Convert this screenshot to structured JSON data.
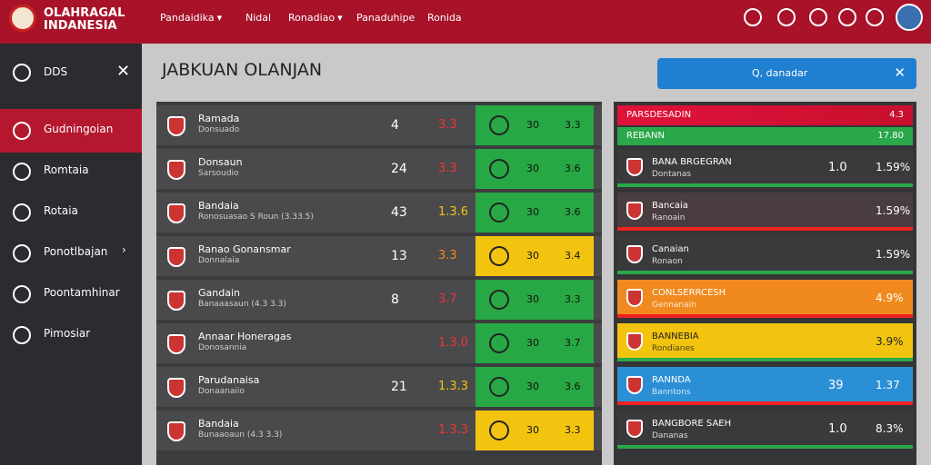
{
  "header": {
    "brand": [
      "OLAHRAGAL",
      "INDANESIA"
    ],
    "nav": [
      {
        "label": "Pandaidika",
        "menu": true
      },
      {
        "label": "Nidal",
        "menu": false
      },
      {
        "label": "Ronadiao",
        "menu": true
      },
      {
        "label": "Panaduhipe",
        "menu": false
      },
      {
        "label": "Ronida",
        "menu": false
      }
    ]
  },
  "sidebar": {
    "title": "DDS",
    "items": [
      {
        "label": "Gudningoian",
        "active": true
      },
      {
        "label": "Romtaia",
        "active": false
      },
      {
        "label": "Rotaia",
        "active": false
      },
      {
        "label": "Ponotlbajan",
        "active": false,
        "arrow": true
      },
      {
        "label": "Poontamhinar",
        "active": false
      },
      {
        "label": "Pimosiar",
        "active": false
      }
    ]
  },
  "main": {
    "title": "JABKUAN OLANJAN",
    "search": "Q, danadar"
  },
  "matches": [
    {
      "name": "Ramada",
      "sub": "Donsuado",
      "num": "4",
      "score": "3.3",
      "a": "30",
      "b": "3.3",
      "color": "green",
      "scoreColor": "red"
    },
    {
      "name": "Donsaun",
      "sub": "Sarsoudio",
      "num": "24",
      "score": "3.3",
      "a": "30",
      "b": "3.6",
      "color": "green",
      "scoreColor": "red"
    },
    {
      "name": "Bandaia",
      "sub": "Ronosuasao S Roun (3.33.5)",
      "num": "43",
      "score": "1.3.6",
      "a": "30",
      "b": "3.6",
      "color": "green",
      "scoreColor": "yellow"
    },
    {
      "name": "Ranao Gonansmar",
      "sub": "Donnalaia",
      "num": "13",
      "score": "3.3",
      "a": "30",
      "b": "3.4",
      "color": "yellow",
      "scoreColor": "orange"
    },
    {
      "name": "Gandain",
      "sub": "Banaaasaun (4.3 3.3)",
      "num": "8",
      "score": "3.7",
      "a": "30",
      "b": "3.3",
      "color": "green",
      "scoreColor": "red"
    },
    {
      "name": "Annaar Honeragas",
      "sub": "Donosannia",
      "num": "",
      "score": "1.3.0",
      "a": "30",
      "b": "3.7",
      "color": "green",
      "scoreColor": "red"
    },
    {
      "name": "Parudanaisa",
      "sub": "Donaanaiio",
      "num": "21",
      "score": "1.3.3",
      "a": "30",
      "b": "3.6",
      "color": "green",
      "scoreColor": "yellow"
    },
    {
      "name": "Bandaia",
      "sub": "Bunaaoaun (4.3 3.3)",
      "num": "",
      "score": "1.3.3",
      "a": "30",
      "b": "3.3",
      "color": "yellow",
      "scoreColor": "red"
    }
  ],
  "standings": {
    "header": {
      "label": "PARSDESADIN",
      "value": "4.3"
    },
    "sub": {
      "label": "REBANN",
      "value": "17.80"
    },
    "rows": [
      {
        "name": "BANA BRGEGRAN",
        "sub": "Dontanas",
        "a": "1.0",
        "b": "1.59%",
        "color": "dark"
      },
      {
        "name": "Bancaia",
        "sub": "Ranoain",
        "a": "",
        "b": "1.59%",
        "color": "dark2"
      },
      {
        "name": "Canaian",
        "sub": "Ronaon",
        "a": "",
        "b": "1.59%",
        "color": "dark"
      },
      {
        "name": "CONLSERRCESH",
        "sub": "Gennanain",
        "a": "",
        "b": "4.9%",
        "color": "orange"
      },
      {
        "name": "BANNEBIA",
        "sub": "Rondianes",
        "a": "",
        "b": "3.9%",
        "color": "yellow"
      },
      {
        "name": "RANNDA",
        "sub": "Banntons",
        "a": "39",
        "b": "1.37",
        "color": "blue"
      },
      {
        "name": "BANGBORE SAEH",
        "sub": "Dananas",
        "a": "1.0",
        "b": "8.3%",
        "color": "dark"
      }
    ]
  }
}
